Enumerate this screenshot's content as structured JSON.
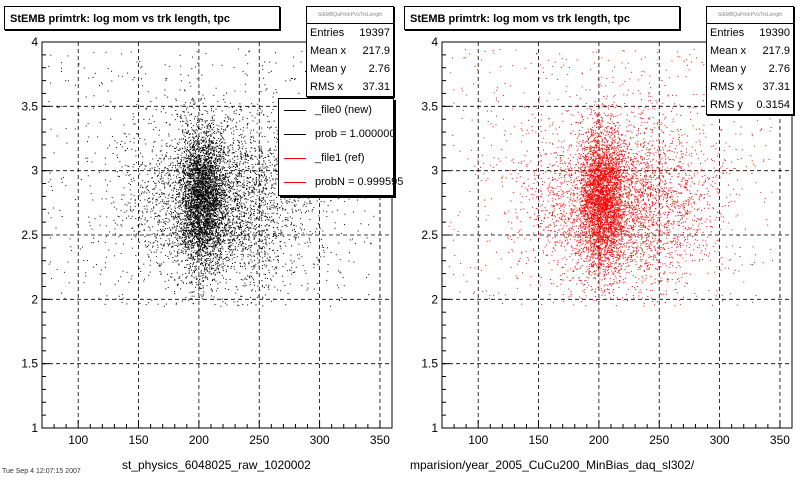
{
  "panels": [
    {
      "title": "StEMB primtrk: log mom vs trk length, tpc",
      "stats_header": "StEMBQaPrtrkPVsTrkLength",
      "stats": [
        {
          "label": "Entries",
          "value": "19397"
        },
        {
          "label": "Mean x",
          "value": "217.9"
        },
        {
          "label": "Mean y",
          "value": "2.76"
        },
        {
          "label": "RMS x",
          "value": "37.31"
        }
      ],
      "xlabel": "st_physics_6048025_raw_1020002",
      "legend": [
        {
          "label": "_file0 (new)",
          "color": "#000000"
        },
        {
          "label": "prob = 1.000000",
          "color": "#000000"
        },
        {
          "label": "_file1 (ref)",
          "color": "#ff0000"
        },
        {
          "label": "probN = 0.999595",
          "color": "#ff0000"
        }
      ]
    },
    {
      "title": "StEMB primtrk: log mom vs trk length, tpc",
      "stats_header": "StEMBQaPrtrkPVsTrkLength",
      "stats": [
        {
          "label": "Entries",
          "value": "19390"
        },
        {
          "label": "Mean x",
          "value": "217.9"
        },
        {
          "label": "Mean y",
          "value": "2.76"
        },
        {
          "label": "RMS x",
          "value": "37.31"
        },
        {
          "label": "RMS y",
          "value": "0.3154"
        }
      ],
      "xlabel": "mparision/year_2005_CuCu200_MinBias_daq_sl302/"
    }
  ],
  "footer_text": "Tue Sep 4 12:07:15 2007",
  "chart_data": [
    {
      "type": "scatter",
      "title": "StEMB primtrk: log mom vs trk length, tpc",
      "xlabel": "st_physics_6048025_raw_1020002",
      "ylabel": "",
      "xlim": [
        70,
        360
      ],
      "ylim": [
        1,
        4
      ],
      "xticks": [
        100,
        150,
        200,
        250,
        300,
        350
      ],
      "yticks": [
        1,
        1.5,
        2,
        2.5,
        3,
        3.5,
        4
      ],
      "grid": true,
      "legend_position": "top-right",
      "color": "#000000",
      "entries": 19397,
      "mean_x": 217.9,
      "mean_y": 2.76,
      "rms_x": 37.31,
      "density": {
        "x_range": [
          75,
          345
        ],
        "y_range": [
          1.95,
          3.95
        ],
        "core_x_range": [
          190,
          215
        ],
        "core_y_range": [
          2.3,
          3.3
        ]
      }
    },
    {
      "type": "scatter",
      "title": "StEMB primtrk: log mom vs trk length, tpc",
      "xlabel": "mparision/year_2005_CuCu200_MinBias_daq_sl302/",
      "ylabel": "",
      "xlim": [
        70,
        360
      ],
      "ylim": [
        1,
        4
      ],
      "xticks": [
        100,
        150,
        200,
        250,
        300,
        350
      ],
      "yticks": [
        1,
        1.5,
        2,
        2.5,
        3,
        3.5,
        4
      ],
      "grid": true,
      "color": "#ff0000",
      "entries": 19390,
      "mean_x": 217.9,
      "mean_y": 2.76,
      "rms_x": 37.31,
      "rms_y": 0.3154,
      "density": {
        "x_range": [
          75,
          345
        ],
        "y_range": [
          1.95,
          3.95
        ],
        "core_x_range": [
          190,
          215
        ],
        "core_y_range": [
          2.3,
          3.3
        ]
      }
    }
  ]
}
